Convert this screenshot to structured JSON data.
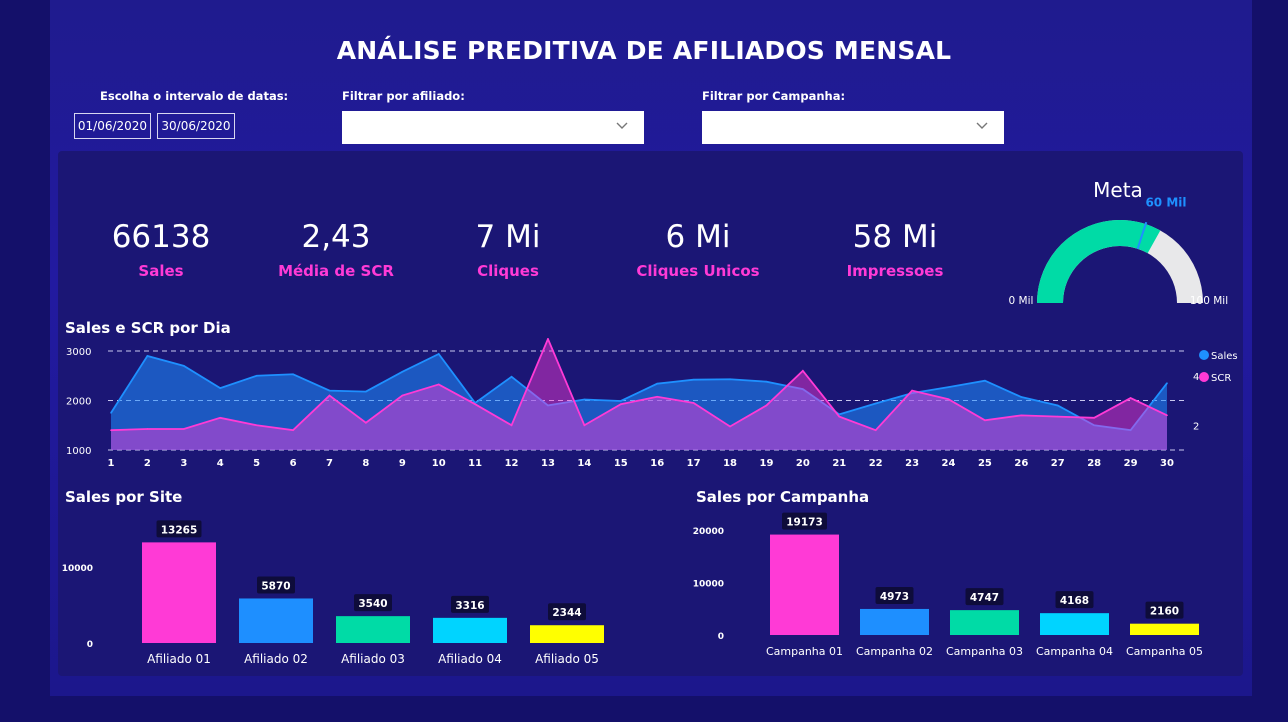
{
  "title": "ANÁLISE PREDITIVA DE AFILIADOS MENSAL",
  "filters": {
    "date_label": "Escolha o intervalo de datas:",
    "date_start": "01/06/2020",
    "date_end": "30/06/2020",
    "affiliate_label": "Filtrar por afiliado:",
    "affiliate_value": "",
    "campaign_label": "Filtrar por Campanha:",
    "campaign_value": ""
  },
  "kpis": [
    {
      "value": "66138",
      "label": "Sales"
    },
    {
      "value": "2,43",
      "label": "Média de SCR"
    },
    {
      "value": "7 Mi",
      "label": "Cliques"
    },
    {
      "value": "6 Mi",
      "label": "Cliques Unicos"
    },
    {
      "value": "58 Mi",
      "label": "Impressoes"
    }
  ],
  "gauge": {
    "title": "Meta",
    "value": 66138,
    "min": 0,
    "max": 100000,
    "target": 60000,
    "min_label": "0 Mil",
    "max_label": "100 Mil",
    "target_label": "60 Mil",
    "fill_color": "#00dba6",
    "track_color": "#e8e8ea",
    "target_color": "#1e90ff"
  },
  "chart_data": [
    {
      "type": "area",
      "title": "Sales e SCR por Dia",
      "x": [
        1,
        2,
        3,
        4,
        5,
        6,
        7,
        8,
        9,
        10,
        11,
        12,
        13,
        14,
        15,
        16,
        17,
        18,
        19,
        20,
        21,
        22,
        23,
        24,
        25,
        26,
        27,
        28,
        29,
        30
      ],
      "x_tick_labels": [
        "1",
        "2",
        "3",
        "4",
        "5",
        "6",
        "7",
        "8",
        "9",
        "10",
        "11",
        "12",
        "13",
        "14",
        "15",
        "16",
        "17",
        "18",
        "19",
        "20",
        "21",
        "22",
        "23",
        "24",
        "25",
        "26",
        "27",
        "28",
        "29",
        "30"
      ],
      "y_left_ticks": [
        "1000",
        "2000",
        "3000"
      ],
      "y_right_ticks": [
        "2",
        "4"
      ],
      "ylim_left": [
        1000,
        3000
      ],
      "ylim_right": [
        1,
        5
      ],
      "grid": true,
      "legend_position": "right",
      "series": [
        {
          "name": "Sales",
          "axis": "left",
          "color": "#1e90ff",
          "values": [
            1750,
            2900,
            2700,
            2250,
            2500,
            2530,
            2200,
            2180,
            2580,
            2940,
            1950,
            2480,
            1900,
            2020,
            1990,
            2340,
            2420,
            2430,
            2380,
            2230,
            1720,
            1940,
            2150,
            2270,
            2400,
            2070,
            1900,
            1500,
            1400,
            2350
          ]
        },
        {
          "name": "SCR",
          "axis": "right",
          "color": "#ff3ad6",
          "values": [
            1.8,
            1.85,
            1.85,
            2.3,
            2.0,
            1.8,
            3.2,
            2.1,
            3.2,
            3.65,
            2.85,
            2.0,
            5.6,
            2.0,
            2.85,
            3.15,
            2.9,
            1.95,
            2.8,
            4.2,
            2.35,
            1.8,
            3.4,
            3.05,
            2.2,
            2.4,
            2.35,
            2.3,
            3.1,
            2.4
          ]
        }
      ]
    },
    {
      "type": "bar",
      "title": "Sales por Site",
      "categories": [
        "Afiliado 01",
        "Afiliado 02",
        "Afiliado 03",
        "Afiliado 04",
        "Afiliado 05"
      ],
      "values": [
        13265,
        5870,
        3540,
        3316,
        2344
      ],
      "data_labels": [
        "13265",
        "5870",
        "3540",
        "3316",
        "2344"
      ],
      "colors": [
        "#ff3ad6",
        "#1e8fff",
        "#00dba6",
        "#00d4ff",
        "#ffff00"
      ],
      "y_ticks": [
        "0",
        "10000"
      ],
      "ylim": [
        0,
        14500
      ],
      "grid": false
    },
    {
      "type": "bar",
      "title": "Sales por Campanha",
      "categories": [
        "Campanha 01",
        "Campanha 02",
        "Campanha 03",
        "Campanha 04",
        "Campanha 05"
      ],
      "values": [
        19173,
        4973,
        4747,
        4168,
        2160
      ],
      "data_labels": [
        "19173",
        "4973",
        "4747",
        "4168",
        "2160"
      ],
      "colors": [
        "#ff3ad6",
        "#1e8fff",
        "#00dba6",
        "#00d4ff",
        "#ffff00"
      ],
      "y_ticks": [
        "0",
        "10000",
        "20000"
      ],
      "ylim": [
        0,
        21000
      ],
      "grid": false
    }
  ]
}
